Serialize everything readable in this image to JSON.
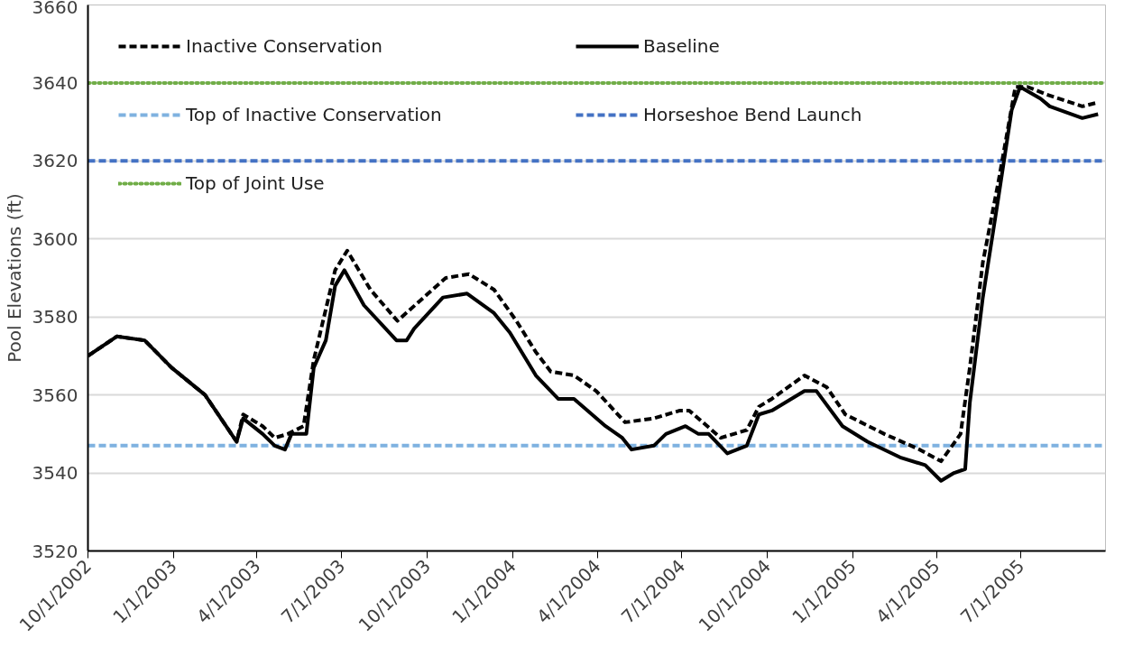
{
  "chart_data": {
    "type": "line",
    "ylabel": "Pool Elevations (ft)",
    "xlim": [
      "2002-10-01",
      "2005-09-30"
    ],
    "ylim": [
      3520,
      3660
    ],
    "yticks": [
      3520,
      3540,
      3560,
      3580,
      3600,
      3620,
      3640,
      3660
    ],
    "xticks": [
      {
        "value": "2002-10-01",
        "label": "10/1/2002"
      },
      {
        "value": "2003-01-01",
        "label": "1/1/2003"
      },
      {
        "value": "2003-04-01",
        "label": "4/1/2003"
      },
      {
        "value": "2003-07-01",
        "label": "7/1/2003"
      },
      {
        "value": "2003-10-01",
        "label": "10/1/2003"
      },
      {
        "value": "2004-01-01",
        "label": "1/1/2004"
      },
      {
        "value": "2004-04-01",
        "label": "4/1/2004"
      },
      {
        "value": "2004-07-01",
        "label": "7/1/2004"
      },
      {
        "value": "2004-10-01",
        "label": "10/1/2004"
      },
      {
        "value": "2005-01-01",
        "label": "1/1/2005"
      },
      {
        "value": "2005-04-01",
        "label": "4/1/2005"
      },
      {
        "value": "2005-07-01",
        "label": "7/1/2005"
      }
    ],
    "grid": "y",
    "legend": "top left",
    "marker": "none",
    "series": [
      {
        "name": "Inactive Conservation",
        "color": "#000000",
        "line_style": "dashed",
        "x": [
          "2002-10-01",
          "2002-11-01",
          "2002-12-01",
          "2002-12-30",
          "2003-02-04",
          "2003-03-10",
          "2003-03-17",
          "2003-04-07",
          "2003-04-20",
          "2003-05-04",
          "2003-05-21",
          "2003-06-01",
          "2003-06-24",
          "2003-07-07",
          "2003-08-01",
          "2003-08-30",
          "2003-10-02",
          "2003-10-21",
          "2003-11-15",
          "2003-12-12",
          "2004-01-05",
          "2004-01-26",
          "2004-02-11",
          "2004-03-07",
          "2004-03-31",
          "2004-05-01",
          "2004-06-01",
          "2004-06-29",
          "2004-07-09",
          "2004-08-12",
          "2004-09-09",
          "2004-09-22",
          "2004-10-06",
          "2004-11-10",
          "2004-12-04",
          "2004-12-24",
          "2005-02-04",
          "2005-03-14",
          "2005-04-06",
          "2005-04-27",
          "2005-05-07",
          "2005-05-21",
          "2005-06-07",
          "2005-06-25",
          "2005-07-08",
          "2005-07-29",
          "2005-09-05",
          "2005-09-22"
        ],
        "values": [
          3570,
          3575,
          3574,
          3567,
          3560,
          3548,
          3555,
          3552,
          3549,
          3550,
          3552,
          3569,
          3592,
          3597,
          3587,
          3579,
          3586,
          3590,
          3591,
          3587,
          3579,
          3571,
          3566,
          3565,
          3561,
          3553,
          3554,
          3556,
          3556,
          3549,
          3551,
          3557,
          3559,
          3565,
          3562,
          3555,
          3550,
          3546,
          3543,
          3550,
          3567,
          3594,
          3615,
          3639,
          3639,
          3637,
          3634,
          3635
        ]
      },
      {
        "name": "Baseline",
        "color": "#000000",
        "line_style": "solid",
        "x": [
          "2002-10-01",
          "2002-11-01",
          "2002-12-01",
          "2002-12-30",
          "2003-02-04",
          "2003-03-10",
          "2003-03-17",
          "2003-04-07",
          "2003-04-20",
          "2003-05-01",
          "2003-05-08",
          "2003-05-24",
          "2003-06-01",
          "2003-06-14",
          "2003-06-24",
          "2003-07-04",
          "2003-07-25",
          "2003-08-29",
          "2003-09-09",
          "2003-09-17",
          "2003-10-18",
          "2003-11-13",
          "2003-12-12",
          "2003-12-29",
          "2004-01-26",
          "2004-02-19",
          "2004-03-07",
          "2004-04-10",
          "2004-04-28",
          "2004-05-08",
          "2004-06-01",
          "2004-06-14",
          "2004-07-05",
          "2004-07-19",
          "2004-07-30",
          "2004-08-19",
          "2004-09-09",
          "2004-09-22",
          "2004-10-06",
          "2004-11-10",
          "2004-11-23",
          "2004-12-21",
          "2005-01-17",
          "2005-02-21",
          "2005-03-20",
          "2005-04-06",
          "2005-04-20",
          "2005-05-02",
          "2005-05-07",
          "2005-05-21",
          "2005-06-07",
          "2005-06-21",
          "2005-06-30",
          "2005-07-22",
          "2005-08-01",
          "2005-09-05",
          "2005-09-22"
        ],
        "values": [
          3570,
          3575,
          3574,
          3567,
          3560,
          3548,
          3554,
          3550,
          3547,
          3546,
          3550,
          3550,
          3567,
          3574,
          3588,
          3592,
          3583,
          3574,
          3574,
          3577,
          3585,
          3586,
          3581,
          3576,
          3565,
          3559,
          3559,
          3552,
          3549,
          3546,
          3547,
          3550,
          3552,
          3550,
          3550,
          3545,
          3547,
          3555,
          3556,
          3561,
          3561,
          3552,
          3548,
          3544,
          3542,
          3538,
          3540,
          3541,
          3558,
          3585,
          3611,
          3633,
          3639,
          3636,
          3634,
          3631,
          3632
        ]
      }
    ],
    "ref_lines": [
      {
        "axis": "y",
        "value": 3547,
        "label": "Top of Inactive Conservation",
        "color": "#7fb2e0",
        "line_style": "dashed"
      },
      {
        "axis": "y",
        "value": 3620,
        "label": "Horseshoe Bend Launch",
        "color": "#4472c4",
        "line_style": "dashed"
      },
      {
        "axis": "y",
        "value": 3640,
        "label": "Top of Joint Use",
        "color": "#70ad47",
        "line_style": "dotted"
      }
    ]
  }
}
